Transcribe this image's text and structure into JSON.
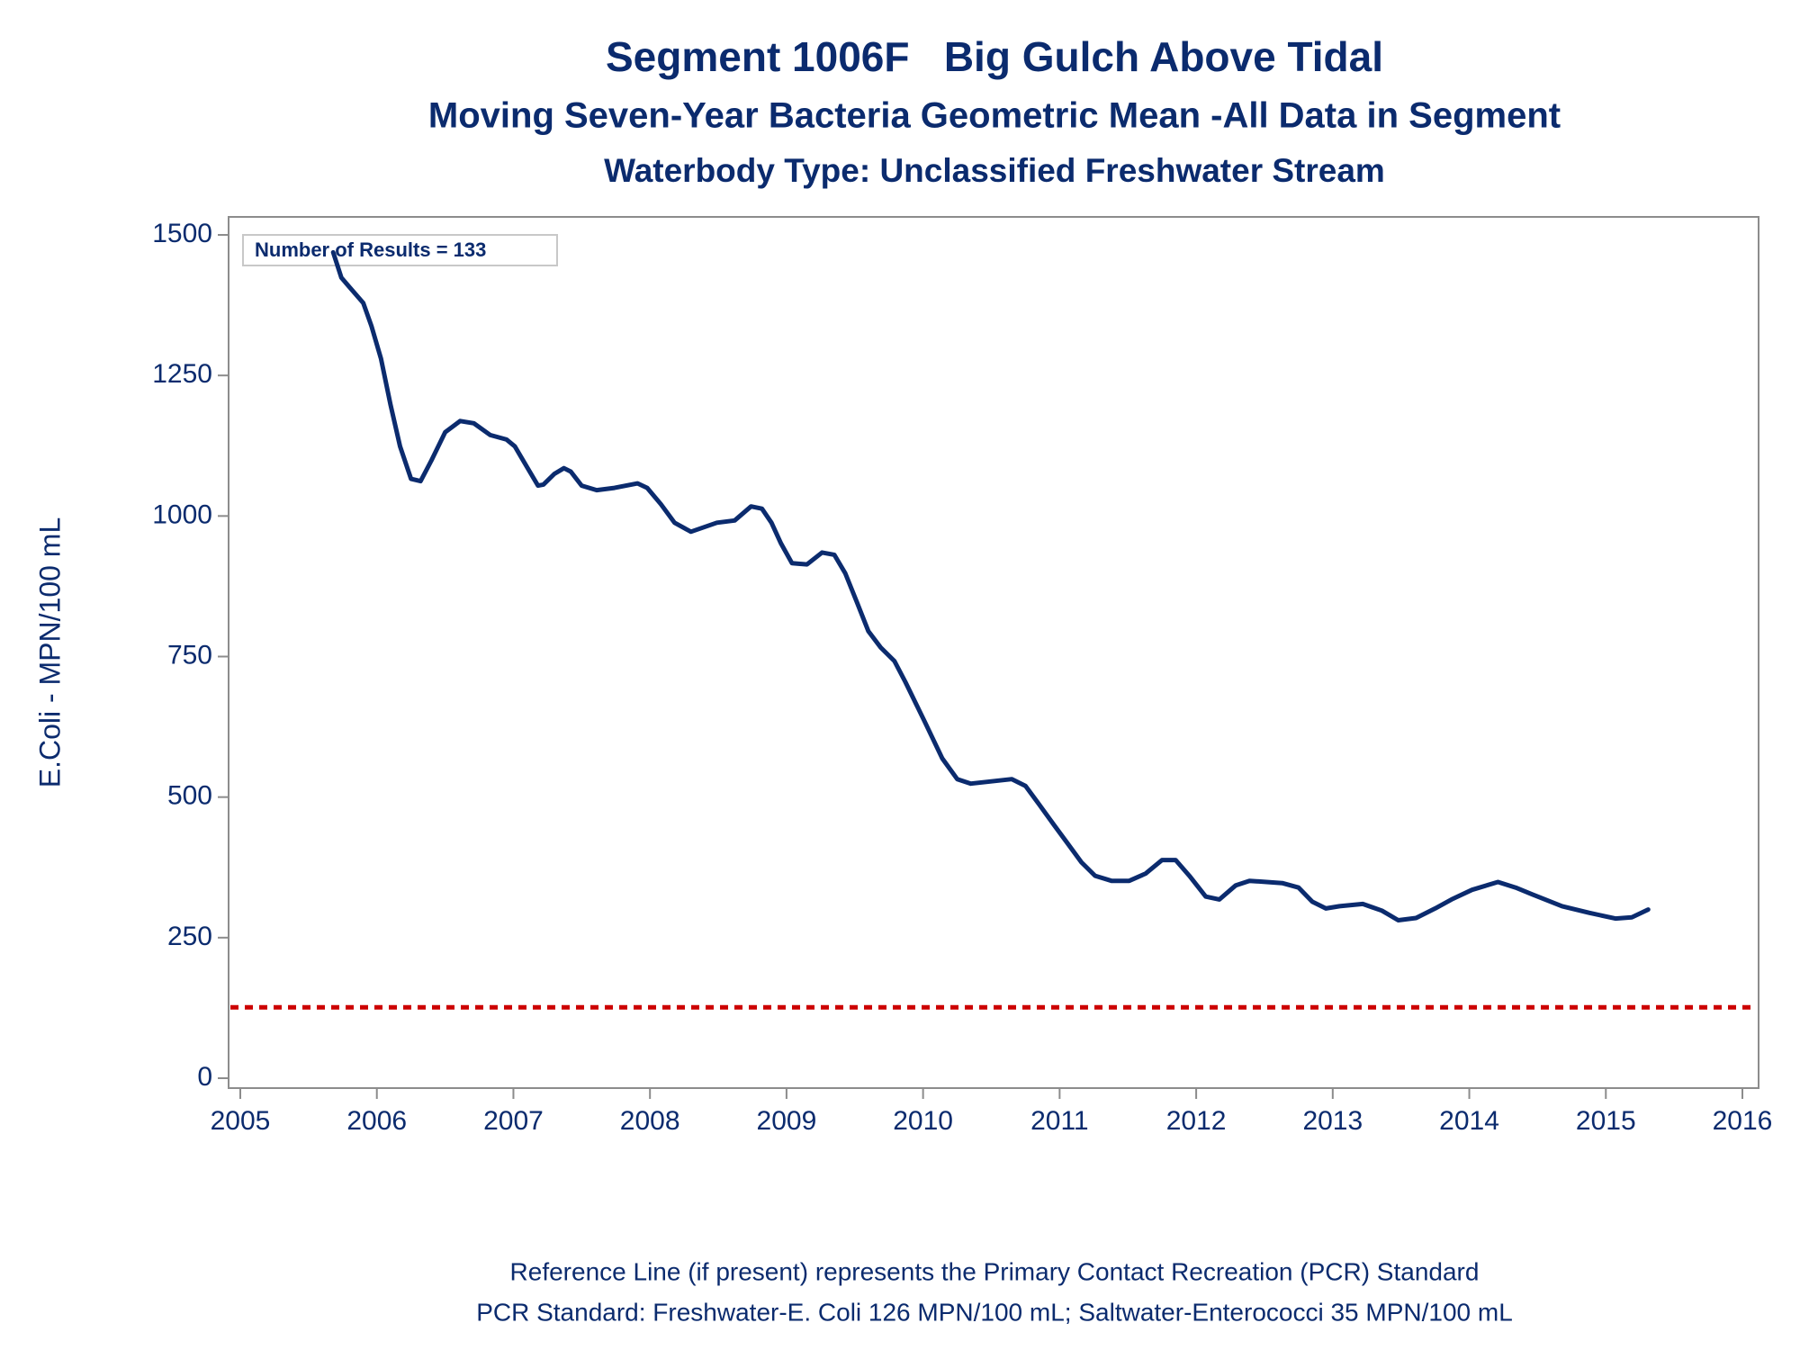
{
  "chart_data": {
    "type": "line",
    "title": "Segment 1006F   Big Gulch Above Tidal",
    "subtitle": "Moving Seven-Year Bacteria Geometric Mean -All Data in Segment",
    "subtitle2": "Waterbody Type: Unclassified Freshwater Stream",
    "y_label": "E.Coli - MPN/100 mL",
    "annotation": "Number of Results = 133",
    "footnotes": [
      "Reference Line (if present) represents the Primary Contact Recreation (PCR) Standard",
      "PCR Standard: Freshwater-E. Coli 126 MPN/100 mL; Saltwater-Enterococci 35 MPN/100 mL"
    ],
    "xlim": [
      2005,
      2016
    ],
    "xticks": [
      2005,
      2006,
      2007,
      2008,
      2009,
      2010,
      2011,
      2012,
      2013,
      2014,
      2015,
      2016
    ],
    "ylim": [
      0,
      1500
    ],
    "yticks": [
      0,
      250,
      500,
      750,
      1000,
      1250,
      1500
    ],
    "reference_line": {
      "value": 126,
      "color": "#cc0000"
    },
    "series": [
      {
        "name": "E.Coli",
        "color": "#0b2b6e",
        "x": [
          2005.68,
          2005.74,
          2005.8,
          2005.9,
          2005.96,
          2006.03,
          2006.1,
          2006.17,
          2006.25,
          2006.32,
          2006.4,
          2006.5,
          2006.61,
          2006.71,
          2006.83,
          2006.95,
          2007.01,
          2007.1,
          2007.18,
          2007.22,
          2007.3,
          2007.37,
          2007.42,
          2007.5,
          2007.61,
          2007.74,
          2007.91,
          2007.98,
          2008.08,
          2008.18,
          2008.3,
          2008.49,
          2008.62,
          2008.74,
          2008.82,
          2008.89,
          2008.96,
          2009.04,
          2009.15,
          2009.26,
          2009.35,
          2009.43,
          2009.52,
          2009.6,
          2009.69,
          2009.79,
          2009.87,
          2010.01,
          2010.14,
          2010.25,
          2010.35,
          2010.5,
          2010.65,
          2010.75,
          2010.85,
          2010.96,
          2011.06,
          2011.16,
          2011.26,
          2011.38,
          2011.51,
          2011.63,
          2011.75,
          2011.85,
          2011.95,
          2012.07,
          2012.17,
          2012.29,
          2012.39,
          2012.63,
          2012.75,
          2012.85,
          2012.95,
          2013.05,
          2013.22,
          2013.36,
          2013.48,
          2013.61,
          2013.75,
          2013.87,
          2014.02,
          2014.21,
          2014.34,
          2014.46,
          2014.68,
          2014.88,
          2015.07,
          2015.19,
          2015.31
        ],
        "values": [
          1469,
          1424,
          1407,
          1379,
          1338,
          1280,
          1198,
          1124,
          1066,
          1062,
          1099,
          1149,
          1169,
          1165,
          1144,
          1136,
          1124,
          1087,
          1054,
          1056,
          1075,
          1085,
          1079,
          1054,
          1046,
          1050,
          1058,
          1050,
          1021,
          988,
          972,
          988,
          992,
          1017,
          1013,
          988,
          951,
          916,
          914,
          935,
          931,
          898,
          844,
          795,
          766,
          742,
          705,
          635,
          569,
          532,
          524,
          528,
          532,
          520,
          487,
          450,
          417,
          384,
          360,
          351,
          351,
          364,
          388,
          388,
          360,
          323,
          318,
          343,
          351,
          347,
          339,
          314,
          302,
          306,
          310,
          298,
          281,
          285,
          302,
          318,
          335,
          349,
          339,
          327,
          306,
          294,
          284,
          286,
          300
        ]
      }
    ]
  }
}
